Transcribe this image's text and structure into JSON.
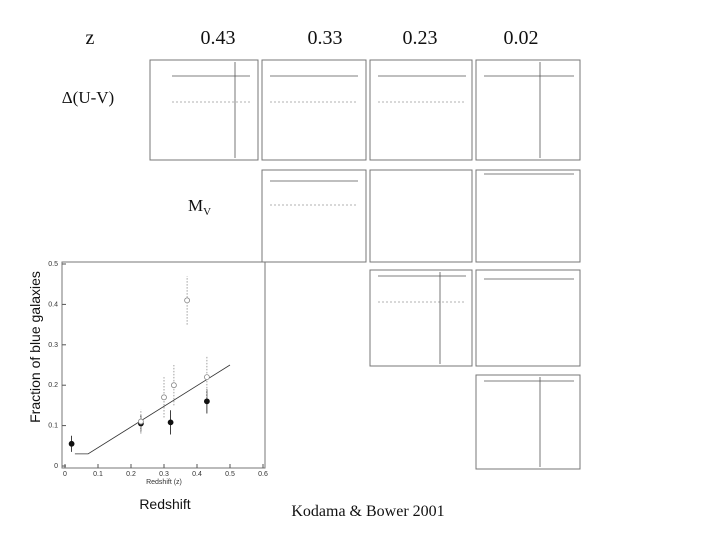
{
  "slide": {
    "z_label": "z",
    "redshifts": [
      "0.43",
      "0.33",
      "0.23",
      "0.02"
    ],
    "color_label": "Δ(U-V)",
    "magnitude_label": "M",
    "magnitude_sub": "V",
    "citation": "Kodama & Bower 2001"
  },
  "chart_data": {
    "type": "scatter",
    "ylabel": "Fraction of blue galaxies",
    "xlabel": "Redshift",
    "inner_xlabel": "Redshift (z)",
    "xlim": [
      0,
      0.6
    ],
    "ylim": [
      0,
      0.5
    ],
    "xticks": [
      0,
      0.1,
      0.2,
      0.3,
      0.4,
      0.5,
      0.6
    ],
    "yticks": [
      0,
      0.1,
      0.2,
      0.3,
      0.4,
      0.5
    ],
    "series": [
      {
        "marker": "filled",
        "color": "#111111",
        "x": [
          0.02,
          0.23,
          0.32,
          0.43
        ],
        "values": [
          0.055,
          0.105,
          0.108,
          0.16
        ],
        "errors": [
          0.02,
          0.02,
          0.03,
          0.03
        ]
      },
      {
        "marker": "open",
        "color": "#888888",
        "x": [
          0.23,
          0.3,
          0.33,
          0.37,
          0.43
        ],
        "values": [
          0.11,
          0.17,
          0.2,
          0.41,
          0.22
        ],
        "errors": [
          0.03,
          0.05,
          0.05,
          0.06,
          0.05
        ]
      }
    ],
    "trend": {
      "x": [
        0.03,
        0.07,
        0.5
      ],
      "values": [
        0.03,
        0.03,
        0.25
      ]
    }
  }
}
